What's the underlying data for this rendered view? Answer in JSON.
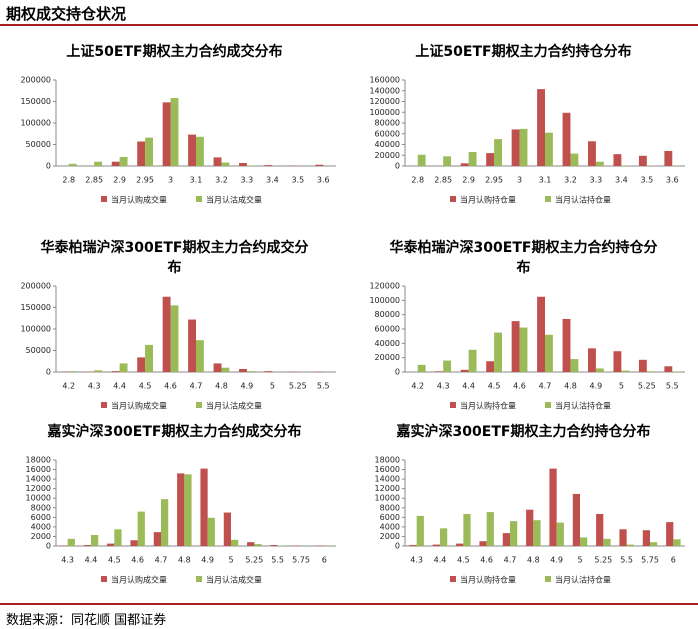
{
  "header": {
    "title": "期权成交持仓状况"
  },
  "chart_data": [
    {
      "type": "bar",
      "title": "上证50ETF期权主力合约成交分布",
      "categories": [
        "2.8",
        "2.85",
        "2.9",
        "2.95",
        "3",
        "3.1",
        "3.2",
        "3.3",
        "3.4",
        "3.5",
        "3.6"
      ],
      "series": [
        {
          "name": "当月认购成交量",
          "color": "#c0504d",
          "values": [
            0,
            0,
            10000,
            57000,
            148000,
            73000,
            20000,
            7000,
            2000,
            1000,
            3000
          ]
        },
        {
          "name": "当月认沽成交量",
          "color": "#9bbb59",
          "values": [
            5000,
            10000,
            21000,
            66000,
            158000,
            68000,
            8000,
            1000,
            500,
            300,
            300
          ]
        }
      ],
      "ylim": [
        0,
        200000
      ],
      "yticks": [
        0,
        50000,
        100000,
        150000,
        200000
      ],
      "grid": false
    },
    {
      "type": "bar",
      "title": "上证50ETF期权主力合约持仓分布",
      "categories": [
        "2.8",
        "2.85",
        "2.9",
        "2.95",
        "3",
        "3.1",
        "3.2",
        "3.3",
        "3.4",
        "3.5",
        "3.6"
      ],
      "series": [
        {
          "name": "当月认购持仓量",
          "color": "#c0504d",
          "values": [
            0,
            0,
            5000,
            24000,
            68000,
            143000,
            99000,
            46000,
            22000,
            19000,
            28000
          ]
        },
        {
          "name": "当月认沽持仓量",
          "color": "#9bbb59",
          "values": [
            21000,
            18000,
            26000,
            50000,
            69000,
            62000,
            23000,
            8000,
            1000,
            500,
            500
          ]
        }
      ],
      "ylim": [
        0,
        160000
      ],
      "yticks": [
        0,
        20000,
        40000,
        60000,
        80000,
        100000,
        120000,
        140000,
        160000
      ],
      "grid": false
    },
    {
      "type": "bar",
      "title": "华泰柏瑞沪深300ETF期权主力合约成交分布",
      "categories": [
        "4.2",
        "4.3",
        "4.4",
        "4.5",
        "4.6",
        "4.7",
        "4.8",
        "4.9",
        "5",
        "5.25",
        "5.5"
      ],
      "series": [
        {
          "name": "当月认购成交量",
          "color": "#c0504d",
          "values": [
            1000,
            1000,
            2000,
            34000,
            175000,
            122000,
            20000,
            7000,
            2000,
            1000,
            1000
          ]
        },
        {
          "name": "当月认沽成交量",
          "color": "#9bbb59",
          "values": [
            2000,
            4000,
            20000,
            63000,
            155000,
            74000,
            10000,
            2000,
            500,
            300,
            300
          ]
        }
      ],
      "ylim": [
        0,
        200000
      ],
      "yticks": [
        0,
        50000,
        100000,
        150000,
        200000
      ],
      "grid": false
    },
    {
      "type": "bar",
      "title": "华泰柏瑞沪深300ETF期权主力合约持仓分布",
      "categories": [
        "4.2",
        "4.3",
        "4.4",
        "4.5",
        "4.6",
        "4.7",
        "4.8",
        "4.9",
        "5",
        "5.25",
        "5.5"
      ],
      "series": [
        {
          "name": "当月认购持仓量",
          "color": "#c0504d",
          "values": [
            0,
            1000,
            3000,
            15000,
            71000,
            105000,
            74000,
            33000,
            29000,
            17000,
            8000
          ]
        },
        {
          "name": "当月认沽持仓量",
          "color": "#9bbb59",
          "values": [
            10000,
            16000,
            31000,
            55000,
            62000,
            52000,
            18000,
            5000,
            2000,
            1000,
            500
          ]
        }
      ],
      "ylim": [
        0,
        120000
      ],
      "yticks": [
        0,
        20000,
        40000,
        60000,
        80000,
        100000,
        120000
      ],
      "grid": false
    },
    {
      "type": "bar",
      "title": "嘉实沪深300ETF期权主力合约成交分布",
      "categories": [
        "4.3",
        "4.4",
        "4.5",
        "4.6",
        "4.7",
        "4.8",
        "4.9",
        "5",
        "5.25",
        "5.5",
        "5.75",
        "6"
      ],
      "series": [
        {
          "name": "当月认购成交量",
          "color": "#c0504d",
          "values": [
            100,
            200,
            500,
            1200,
            2900,
            15200,
            16200,
            7000,
            800,
            200,
            100,
            100
          ]
        },
        {
          "name": "当月认沽成交量",
          "color": "#9bbb59",
          "values": [
            1500,
            2300,
            3500,
            7200,
            9800,
            15000,
            5900,
            1300,
            400,
            100,
            50,
            50
          ]
        }
      ],
      "ylim": [
        0,
        18000
      ],
      "yticks": [
        0,
        2000,
        4000,
        6000,
        8000,
        10000,
        12000,
        14000,
        16000,
        18000
      ],
      "grid": false
    },
    {
      "type": "bar",
      "title": "嘉实沪深300ETF期权主力合约持仓分布",
      "categories": [
        "4.3",
        "4.4",
        "4.5",
        "4.6",
        "4.7",
        "4.8",
        "4.9",
        "5",
        "5.25",
        "5.5",
        "5.75",
        "6"
      ],
      "series": [
        {
          "name": "当月认购持仓量",
          "color": "#c0504d",
          "values": [
            200,
            300,
            500,
            1000,
            2700,
            7600,
            16200,
            10900,
            6700,
            3500,
            3300,
            5000
          ]
        },
        {
          "name": "当月认沽持仓量",
          "color": "#9bbb59",
          "values": [
            6300,
            3700,
            6700,
            7100,
            5200,
            5400,
            4900,
            1800,
            1500,
            300,
            800,
            1400
          ]
        }
      ],
      "ylim": [
        0,
        18000
      ],
      "yticks": [
        0,
        2000,
        4000,
        6000,
        8000,
        10000,
        12000,
        14000,
        16000,
        18000
      ],
      "grid": false
    }
  ],
  "footer": {
    "source": "数据来源：同花顺 国都证券"
  }
}
